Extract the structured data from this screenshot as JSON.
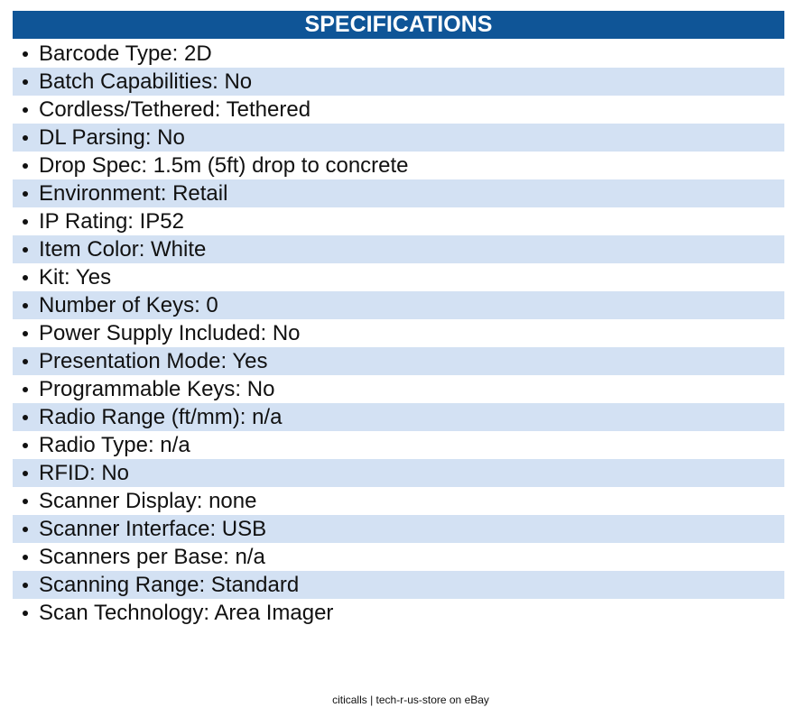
{
  "title": "SPECIFICATIONS",
  "items": [
    "Barcode Type: 2D",
    "Batch Capabilities: No",
    "Cordless/Tethered: Tethered",
    "DL Parsing: No",
    "Drop Spec: 1.5m (5ft) drop to concrete",
    "Environment: Retail",
    "IP Rating: IP52",
    "Item Color: White",
    "Kit: Yes",
    "Number of Keys: 0",
    "Power Supply Included: No",
    "Presentation Mode: Yes",
    "Programmable Keys: No",
    "Radio Range (ft/mm): n/a",
    "Radio Type: n/a",
    "RFID: No",
    "Scanner Display: none",
    "Scanner Interface: USB",
    "Scanners per Base: n/a",
    "Scanning Range: Standard",
    "Scan Technology: Area Imager"
  ],
  "footer": "citicalls | tech-r-us-store on eBay"
}
